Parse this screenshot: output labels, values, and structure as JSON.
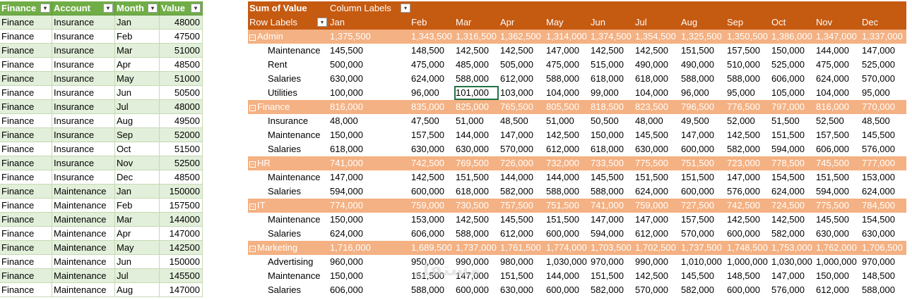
{
  "source_table": {
    "headers": [
      "Finance",
      "Account",
      "Month",
      "Value"
    ],
    "rows": [
      [
        "Finance",
        "Insurance",
        "Jan",
        "48000"
      ],
      [
        "Finance",
        "Insurance",
        "Feb",
        "47500"
      ],
      [
        "Finance",
        "Insurance",
        "Mar",
        "51000"
      ],
      [
        "Finance",
        "Insurance",
        "Apr",
        "48500"
      ],
      [
        "Finance",
        "Insurance",
        "May",
        "51000"
      ],
      [
        "Finance",
        "Insurance",
        "Jun",
        "50500"
      ],
      [
        "Finance",
        "Insurance",
        "Jul",
        "48000"
      ],
      [
        "Finance",
        "Insurance",
        "Aug",
        "49500"
      ],
      [
        "Finance",
        "Insurance",
        "Sep",
        "52000"
      ],
      [
        "Finance",
        "Insurance",
        "Oct",
        "51500"
      ],
      [
        "Finance",
        "Insurance",
        "Nov",
        "52500"
      ],
      [
        "Finance",
        "Insurance",
        "Dec",
        "48500"
      ],
      [
        "Finance",
        "Maintenance",
        "Jan",
        "150000"
      ],
      [
        "Finance",
        "Maintenance",
        "Feb",
        "157500"
      ],
      [
        "Finance",
        "Maintenance",
        "Mar",
        "144000"
      ],
      [
        "Finance",
        "Maintenance",
        "Apr",
        "147000"
      ],
      [
        "Finance",
        "Maintenance",
        "May",
        "142500"
      ],
      [
        "Finance",
        "Maintenance",
        "Jun",
        "150000"
      ],
      [
        "Finance",
        "Maintenance",
        "Jul",
        "145500"
      ],
      [
        "Finance",
        "Maintenance",
        "Aug",
        "147000"
      ]
    ]
  },
  "pivot": {
    "title": "Sum of Value",
    "column_labels": "Column Labels",
    "row_labels": "Row Labels",
    "months": [
      "Jan",
      "Feb",
      "Mar",
      "Apr",
      "May",
      "Jun",
      "Jul",
      "Aug",
      "Sep",
      "Oct",
      "Nov",
      "Dec"
    ],
    "rows": [
      {
        "type": "group",
        "label": "Admin",
        "values": [
          "1,375,500",
          "1,343,500",
          "1,316,500",
          "1,362,500",
          "1,314,000",
          "1,374,500",
          "1,354,500",
          "1,325,500",
          "1,350,500",
          "1,386,000",
          "1,347,000",
          "1,337,000"
        ]
      },
      {
        "type": "detail",
        "label": "Maintenance",
        "values": [
          "145,500",
          "148,500",
          "142,500",
          "142,500",
          "147,000",
          "142,500",
          "142,500",
          "151,500",
          "157,500",
          "150,000",
          "144,000",
          "147,000"
        ]
      },
      {
        "type": "detail",
        "label": "Rent",
        "values": [
          "500,000",
          "475,000",
          "485,000",
          "505,000",
          "475,000",
          "515,000",
          "490,000",
          "490,000",
          "510,000",
          "525,000",
          "475,000",
          "525,000"
        ]
      },
      {
        "type": "detail",
        "label": "Salaries",
        "values": [
          "630,000",
          "624,000",
          "588,000",
          "612,000",
          "588,000",
          "618,000",
          "618,000",
          "588,000",
          "588,000",
          "606,000",
          "624,000",
          "570,000"
        ]
      },
      {
        "type": "detail",
        "label": "Utilities",
        "values": [
          "100,000",
          "96,000",
          "101,000",
          "103,000",
          "104,000",
          "99,000",
          "104,000",
          "96,000",
          "95,000",
          "105,000",
          "104,000",
          "95,000"
        ]
      },
      {
        "type": "group",
        "label": "Finance",
        "values": [
          "816,000",
          "835,000",
          "825,000",
          "765,500",
          "805,500",
          "818,500",
          "823,500",
          "796,500",
          "776,500",
          "797,000",
          "816,000",
          "770,000"
        ]
      },
      {
        "type": "detail",
        "label": "Insurance",
        "values": [
          "48,000",
          "47,500",
          "51,000",
          "48,500",
          "51,000",
          "50,500",
          "48,000",
          "49,500",
          "52,000",
          "51,500",
          "52,500",
          "48,500"
        ]
      },
      {
        "type": "detail",
        "label": "Maintenance",
        "values": [
          "150,000",
          "157,500",
          "144,000",
          "147,000",
          "142,500",
          "150,000",
          "145,500",
          "147,000",
          "142,500",
          "151,500",
          "157,500",
          "145,500"
        ]
      },
      {
        "type": "detail",
        "label": "Salaries",
        "values": [
          "618,000",
          "630,000",
          "630,000",
          "570,000",
          "612,000",
          "618,000",
          "630,000",
          "600,000",
          "582,000",
          "594,000",
          "606,000",
          "576,000"
        ]
      },
      {
        "type": "group",
        "label": "HR",
        "values": [
          "741,000",
          "742,500",
          "769,500",
          "726,000",
          "732,000",
          "733,500",
          "775,500",
          "751,500",
          "723,000",
          "778,500",
          "745,500",
          "777,000"
        ]
      },
      {
        "type": "detail",
        "label": "Maintenance",
        "values": [
          "147,000",
          "142,500",
          "151,500",
          "144,000",
          "144,000",
          "145,500",
          "151,500",
          "151,500",
          "147,000",
          "154,500",
          "151,500",
          "153,000"
        ]
      },
      {
        "type": "detail",
        "label": "Salaries",
        "values": [
          "594,000",
          "600,000",
          "618,000",
          "582,000",
          "588,000",
          "588,000",
          "624,000",
          "600,000",
          "576,000",
          "624,000",
          "594,000",
          "624,000"
        ]
      },
      {
        "type": "group",
        "label": "IT",
        "values": [
          "774,000",
          "759,000",
          "730,500",
          "757,500",
          "751,500",
          "741,000",
          "759,000",
          "727,500",
          "742,500",
          "724,500",
          "775,500",
          "784,500"
        ]
      },
      {
        "type": "detail",
        "label": "Maintenance",
        "values": [
          "150,000",
          "153,000",
          "142,500",
          "145,500",
          "151,500",
          "147,000",
          "147,000",
          "157,500",
          "142,500",
          "142,500",
          "145,500",
          "154,500"
        ]
      },
      {
        "type": "detail",
        "label": "Salaries",
        "values": [
          "624,000",
          "606,000",
          "588,000",
          "612,000",
          "600,000",
          "594,000",
          "612,000",
          "570,000",
          "600,000",
          "582,000",
          "630,000",
          "630,000"
        ]
      },
      {
        "type": "group",
        "label": "Marketing",
        "values": [
          "1,716,000",
          "1,689,500",
          "1,737,000",
          "1,761,500",
          "1,774,000",
          "1,703,500",
          "1,702,500",
          "1,737,500",
          "1,748,500",
          "1,753,000",
          "1,762,000",
          "1,706,500"
        ]
      },
      {
        "type": "detail",
        "label": "Advertising",
        "values": [
          "960,000",
          "950,000",
          "990,000",
          "980,000",
          "1,030,000",
          "970,000",
          "990,000",
          "1,010,000",
          "1,000,000",
          "1,030,000",
          "1,000,000",
          "970,000"
        ]
      },
      {
        "type": "detail",
        "label": "Maintenance",
        "values": [
          "150,000",
          "151,500",
          "147,000",
          "151,500",
          "144,000",
          "151,500",
          "142,500",
          "145,500",
          "148,500",
          "147,000",
          "150,000",
          "148,500"
        ]
      },
      {
        "type": "detail",
        "label": "Salaries",
        "values": [
          "606,000",
          "588,000",
          "600,000",
          "630,000",
          "600,000",
          "582,000",
          "570,000",
          "582,000",
          "600,000",
          "576,000",
          "612,000",
          "588,000"
        ]
      }
    ]
  },
  "ui": {
    "filter_glyph": "▾",
    "collapse_glyph": "−",
    "watermark": "مستقل"
  }
}
